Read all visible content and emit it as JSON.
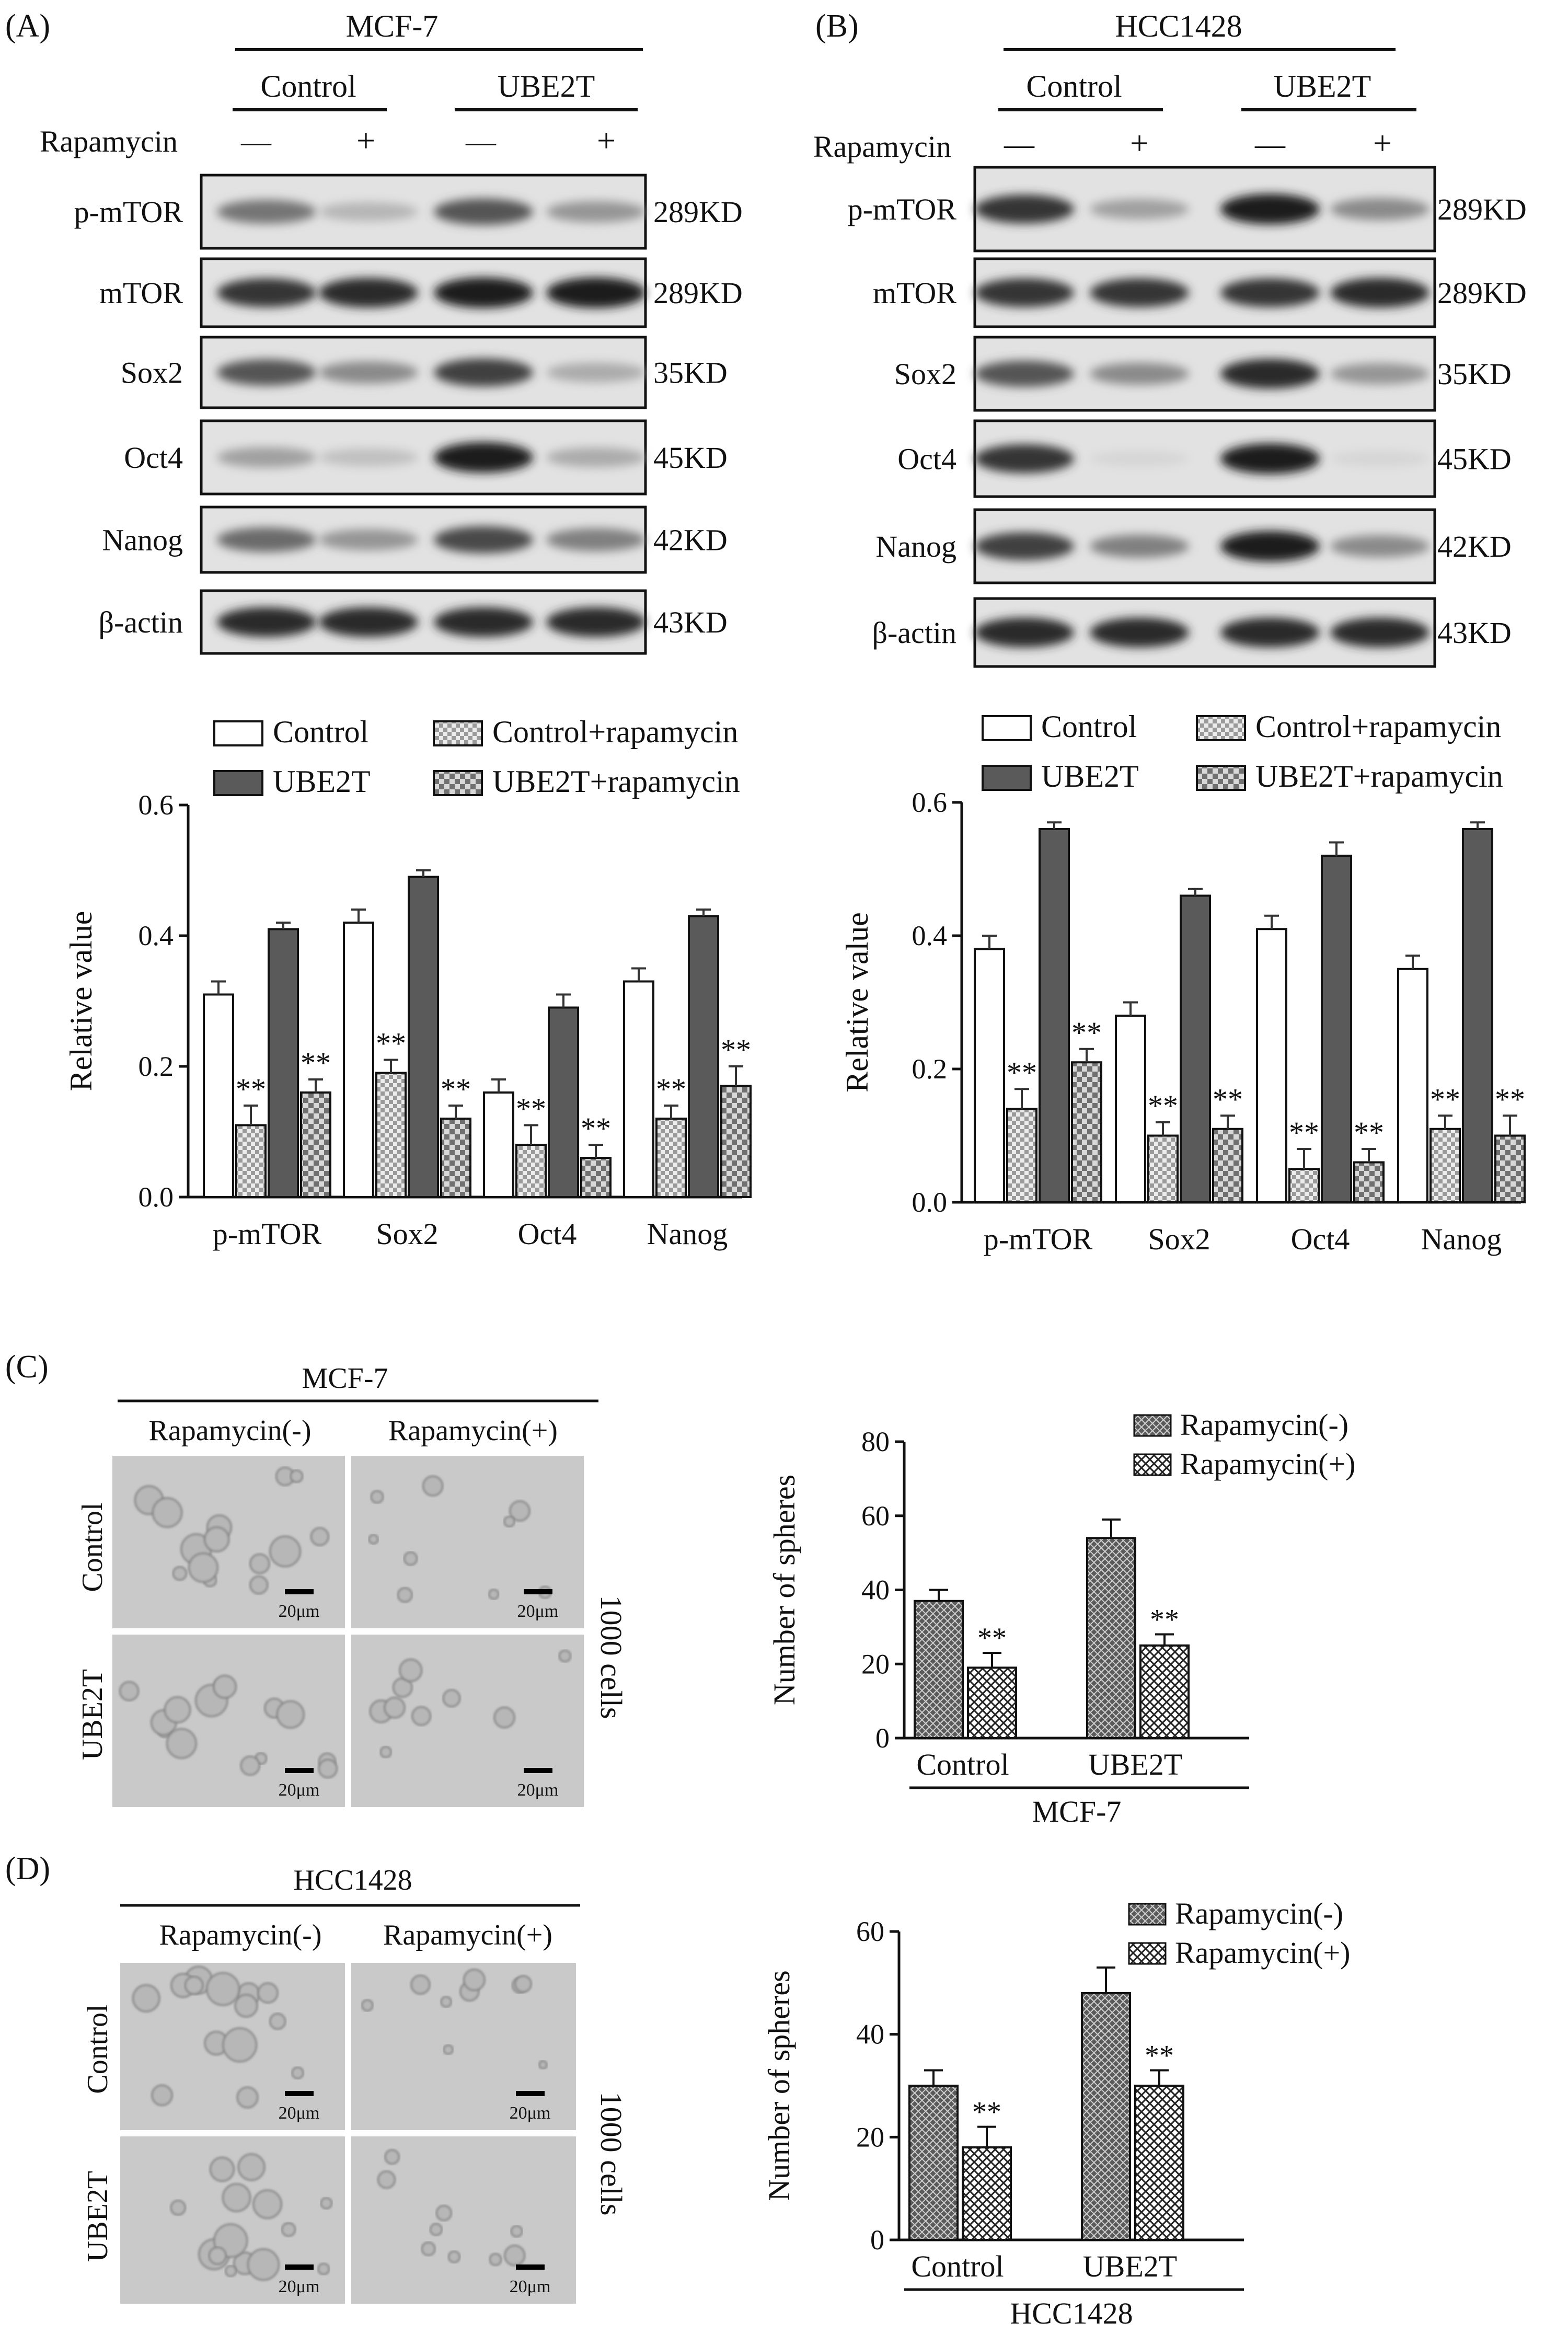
{
  "panels": {
    "A": {
      "letter": "(A)",
      "cell_line": "MCF-7",
      "groups": [
        "Control",
        "UBE2T"
      ],
      "treatment_label": "Rapamycin",
      "treatment_signs": [
        "—",
        "+",
        "—",
        "+"
      ],
      "proteins": [
        "p-mTOR",
        "mTOR",
        "Sox2",
        "Oct4",
        "Nanog",
        "β-actin"
      ],
      "sizes": [
        "289KD",
        "289KD",
        "35KD",
        "45KD",
        "42KD",
        "43KD"
      ],
      "band_intensity": [
        [
          0.55,
          0.25,
          0.7,
          0.4
        ],
        [
          0.85,
          0.9,
          0.95,
          0.95
        ],
        [
          0.7,
          0.45,
          0.8,
          0.3
        ],
        [
          0.35,
          0.2,
          0.95,
          0.3
        ],
        [
          0.6,
          0.4,
          0.75,
          0.5
        ],
        [
          0.9,
          0.9,
          0.9,
          0.9
        ]
      ]
    },
    "B": {
      "letter": "(B)",
      "cell_line": "HCC1428",
      "groups": [
        "Control",
        "UBE2T"
      ],
      "treatment_label": "Rapamycin",
      "treatment_signs": [
        "—",
        "+",
        "—",
        "+"
      ],
      "proteins": [
        "p-mTOR",
        "mTOR",
        "Sox2",
        "Oct4",
        "Nanog",
        "β-actin"
      ],
      "sizes": [
        "289KD",
        "289KD",
        "35KD",
        "45KD",
        "42KD",
        "43KD"
      ],
      "band_intensity": [
        [
          0.85,
          0.35,
          0.95,
          0.45
        ],
        [
          0.85,
          0.85,
          0.85,
          0.9
        ],
        [
          0.7,
          0.45,
          0.9,
          0.4
        ],
        [
          0.85,
          0.1,
          0.95,
          0.1
        ],
        [
          0.8,
          0.5,
          0.95,
          0.45
        ],
        [
          0.9,
          0.9,
          0.9,
          0.9
        ]
      ]
    },
    "C": {
      "letter": "(C)",
      "cell_line": "MCF-7",
      "columns": [
        "Rapamycin(-)",
        "Rapamycin(+)"
      ],
      "rows": [
        "Control",
        "UBE2T"
      ],
      "scale_bar": "20μm",
      "side_label": "1000 cells"
    },
    "D": {
      "letter": "(D)",
      "cell_line": "HCC1428",
      "columns": [
        "Rapamycin(-)",
        "Rapamycin(+)"
      ],
      "rows": [
        "Control",
        "UBE2T"
      ],
      "scale_bar": "20μm",
      "side_label": "1000 cells"
    }
  },
  "significance": "**",
  "colors": {
    "control": "#ffffff",
    "ube2t": "#5a5a5a",
    "hatch": "#bdbdbd",
    "sphere_hatch": "#6a6a6a",
    "micrograph": "#c9c9c9"
  },
  "chart_data": [
    {
      "type": "bar",
      "panel": "A",
      "categories": [
        "p-mTOR",
        "Sox2",
        "Oct4",
        "Nanog"
      ],
      "ylabel": "Relative value",
      "ylim": [
        0,
        0.6
      ],
      "yticks": [
        "0.0",
        "0.2",
        "0.4",
        "0.6"
      ],
      "legend_position": "top",
      "series": [
        {
          "name": "Control",
          "values": [
            0.31,
            0.42,
            0.16,
            0.33
          ],
          "errors": [
            0.02,
            0.02,
            0.02,
            0.02
          ],
          "sig": [
            false,
            false,
            false,
            false
          ]
        },
        {
          "name": "Control+rapamycin",
          "values": [
            0.11,
            0.19,
            0.08,
            0.12
          ],
          "errors": [
            0.03,
            0.02,
            0.03,
            0.02
          ],
          "sig": [
            true,
            true,
            true,
            true
          ]
        },
        {
          "name": "UBE2T",
          "values": [
            0.41,
            0.49,
            0.29,
            0.43
          ],
          "errors": [
            0.01,
            0.01,
            0.02,
            0.01
          ],
          "sig": [
            false,
            false,
            false,
            false
          ]
        },
        {
          "name": "UBE2T+rapamycin",
          "values": [
            0.16,
            0.12,
            0.06,
            0.17
          ],
          "errors": [
            0.02,
            0.02,
            0.02,
            0.03
          ],
          "sig": [
            true,
            true,
            true,
            true
          ]
        }
      ]
    },
    {
      "type": "bar",
      "panel": "B",
      "categories": [
        "p-mTOR",
        "Sox2",
        "Oct4",
        "Nanog"
      ],
      "ylabel": "Relative value",
      "ylim": [
        0,
        0.6
      ],
      "yticks": [
        "0.0",
        "0.2",
        "0.4",
        "0.6"
      ],
      "legend_position": "top",
      "series": [
        {
          "name": "Control",
          "values": [
            0.38,
            0.28,
            0.41,
            0.35
          ],
          "errors": [
            0.02,
            0.02,
            0.02,
            0.02
          ],
          "sig": [
            false,
            false,
            false,
            false
          ]
        },
        {
          "name": "Control+rapamycin",
          "values": [
            0.14,
            0.1,
            0.05,
            0.11
          ],
          "errors": [
            0.03,
            0.02,
            0.03,
            0.02
          ],
          "sig": [
            true,
            true,
            true,
            true
          ]
        },
        {
          "name": "UBE2T",
          "values": [
            0.56,
            0.46,
            0.52,
            0.56
          ],
          "errors": [
            0.01,
            0.01,
            0.02,
            0.01
          ],
          "sig": [
            false,
            false,
            false,
            false
          ]
        },
        {
          "name": "UBE2T+rapamycin",
          "values": [
            0.21,
            0.11,
            0.06,
            0.1
          ],
          "errors": [
            0.02,
            0.02,
            0.02,
            0.03
          ],
          "sig": [
            true,
            true,
            true,
            true
          ]
        }
      ]
    },
    {
      "type": "bar",
      "panel": "C",
      "categories": [
        "Control",
        "UBE2T"
      ],
      "xlabel": "MCF-7",
      "ylabel": "Number of spheres",
      "ylim": [
        0,
        80
      ],
      "yticks": [
        "0",
        "20",
        "40",
        "60",
        "80"
      ],
      "legend_position": "top-right",
      "series": [
        {
          "name": "Rapamycin(-)",
          "values": [
            37,
            54
          ],
          "errors": [
            3,
            5
          ],
          "sig": [
            false,
            false
          ]
        },
        {
          "name": "Rapamycin(+)",
          "values": [
            19,
            25
          ],
          "errors": [
            4,
            3
          ],
          "sig": [
            true,
            true
          ]
        }
      ]
    },
    {
      "type": "bar",
      "panel": "D",
      "categories": [
        "Control",
        "UBE2T"
      ],
      "xlabel": "HCC1428",
      "ylabel": "Number of spheres",
      "ylim": [
        0,
        60
      ],
      "yticks": [
        "0",
        "20",
        "40",
        "60"
      ],
      "legend_position": "top-right",
      "series": [
        {
          "name": "Rapamycin(-)",
          "values": [
            30,
            48
          ],
          "errors": [
            3,
            5
          ],
          "sig": [
            false,
            false
          ]
        },
        {
          "name": "Rapamycin(+)",
          "values": [
            18,
            30
          ],
          "errors": [
            4,
            3
          ],
          "sig": [
            true,
            true
          ]
        }
      ]
    }
  ]
}
